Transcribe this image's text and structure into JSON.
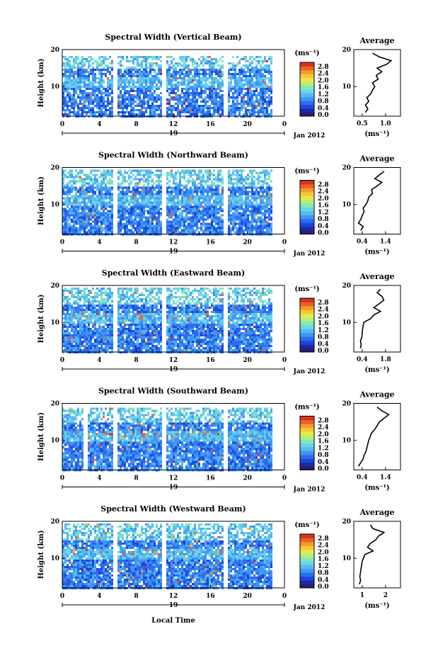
{
  "colors": {
    "scale": [
      "#2b1d6b",
      "#1a2aa8",
      "#1f45d8",
      "#2b6cf0",
      "#3f95f5",
      "#57b9f2",
      "#6bd6e6",
      "#82e8b8",
      "#b5ee7a",
      "#e6e94c",
      "#f7c63a",
      "#f59a2e",
      "#ea6226",
      "#d8321f"
    ],
    "background": "#ffffff",
    "profile_line": "#000000"
  },
  "colorbar": {
    "unit": "(ms⁻¹)",
    "ticks": [
      "2.8",
      "2.4",
      "2.0",
      "1.6",
      "1.2",
      "0.8",
      "0.4",
      "0.0"
    ]
  },
  "date_label": "Jan 2012",
  "day_label": "19",
  "xlabel_bottom": "Local Time",
  "chart_data": [
    {
      "type": "heatmap",
      "title": "Spectral Width (Vertical Beam)",
      "ylabel": "Height (km)",
      "xlim": [
        0,
        24
      ],
      "ylim": [
        2,
        20
      ],
      "xticks": [
        "0",
        "4",
        "8",
        "12",
        "16",
        "20",
        "0"
      ],
      "yticks": [
        "20",
        "10"
      ],
      "data_gaps_hours": [
        5.7,
        10.9,
        17.6
      ],
      "data_end_hour": 22.5,
      "top_height_km": 18.5,
      "profile": {
        "title": "Average",
        "xlabel": "(ms⁻¹)",
        "xlim": [
          0.3,
          1.3
        ],
        "xticks": [
          "0.5",
          "1.0"
        ],
        "heights": [
          3,
          4,
          5,
          6,
          7,
          8,
          9,
          10,
          11,
          12,
          13,
          14,
          15,
          16,
          17,
          18,
          19
        ],
        "values": [
          0.55,
          0.6,
          0.55,
          0.62,
          0.58,
          0.66,
          0.7,
          0.75,
          0.7,
          0.82,
          0.78,
          0.9,
          0.8,
          1.0,
          1.1,
          0.85,
          0.7
        ]
      }
    },
    {
      "type": "heatmap",
      "title": "Spectral Width (Northward Beam)",
      "ylabel": "Height (km)",
      "xlim": [
        0,
        24
      ],
      "ylim": [
        2,
        20
      ],
      "xticks": [
        "0",
        "4",
        "8",
        "12",
        "16",
        "20",
        "0"
      ],
      "yticks": [
        "20",
        "10"
      ],
      "data_gaps_hours": [
        5.7,
        10.9,
        17.6
      ],
      "data_end_hour": 22.5,
      "top_height_km": 19.5,
      "profile": {
        "title": "Average",
        "xlabel": "(ms⁻¹)",
        "xlim": [
          0.4,
          1.4
        ],
        "xticks": [
          "0.4",
          "1.4"
        ],
        "heights": [
          3,
          4,
          5,
          6,
          7,
          8,
          9,
          10,
          11,
          12,
          13,
          14,
          15,
          16,
          17,
          18,
          19
        ],
        "values": [
          0.55,
          0.6,
          0.5,
          0.55,
          0.58,
          0.62,
          0.6,
          0.66,
          0.7,
          0.72,
          0.8,
          0.78,
          0.9,
          1.0,
          0.85,
          0.95,
          1.05
        ]
      }
    },
    {
      "type": "heatmap",
      "title": "Spectral Width (Eastward Beam)",
      "ylabel": "Height (km)",
      "xlim": [
        0,
        24
      ],
      "ylim": [
        2,
        20
      ],
      "xticks": [
        "0",
        "4",
        "8",
        "12",
        "16",
        "20",
        "0"
      ],
      "yticks": [
        "20",
        "10"
      ],
      "data_gaps_hours": [
        5.7,
        10.9,
        17.6
      ],
      "data_end_hour": 22.5,
      "top_height_km": 19.5,
      "profile": {
        "title": "Average",
        "xlabel": "(ms⁻¹)",
        "xlim": [
          0.4,
          1.8
        ],
        "xticks": [
          "0.4",
          "1.8"
        ],
        "heights": [
          3,
          4,
          5,
          6,
          7,
          8,
          9,
          10,
          11,
          12,
          13,
          14,
          15,
          16,
          17,
          18,
          19
        ],
        "values": [
          0.6,
          0.62,
          0.6,
          0.64,
          0.65,
          0.66,
          0.68,
          0.7,
          0.9,
          1.0,
          1.2,
          1.0,
          1.15,
          1.3,
          1.25,
          1.1,
          1.2
        ]
      }
    },
    {
      "type": "heatmap",
      "title": "Spectral Width (Southward Beam)",
      "ylabel": "Height (km)",
      "xlim": [
        0,
        24
      ],
      "ylim": [
        2,
        20
      ],
      "xticks": [
        "0",
        "4",
        "8",
        "12",
        "16",
        "20",
        "0"
      ],
      "yticks": [
        "20",
        "10"
      ],
      "data_gaps_hours": [
        2.4,
        5.7,
        10.9,
        17.6
      ],
      "data_end_hour": 22.5,
      "top_height_km": 19.0,
      "profile": {
        "title": "Average",
        "xlabel": "(ms⁻¹)",
        "xlim": [
          0.4,
          1.4
        ],
        "xticks": [
          "0.4",
          "1.4"
        ],
        "heights": [
          3,
          4,
          5,
          6,
          7,
          8,
          9,
          10,
          11,
          12,
          13,
          14,
          15,
          16,
          17,
          18,
          19
        ],
        "values": [
          0.5,
          0.55,
          0.6,
          0.62,
          0.66,
          0.68,
          0.7,
          0.72,
          0.75,
          0.78,
          0.85,
          0.9,
          0.95,
          1.05,
          1.15,
          1.0,
          0.9
        ]
      }
    },
    {
      "type": "heatmap",
      "title": "Spectral Width (Westward Beam)",
      "ylabel": "Height (km)",
      "xlim": [
        0,
        24
      ],
      "ylim": [
        2,
        20
      ],
      "xticks": [
        "0",
        "4",
        "8",
        "12",
        "16",
        "20",
        "0"
      ],
      "yticks": [
        "20",
        "10"
      ],
      "data_gaps_hours": [
        5.7,
        10.9,
        17.6
      ],
      "data_end_hour": 22.5,
      "top_height_km": 19.5,
      "profile": {
        "title": "Average",
        "xlabel": "(ms⁻¹)",
        "xlim": [
          0.5,
          2.2
        ],
        "xticks": [
          "1",
          "2"
        ],
        "heights": [
          3,
          4,
          5,
          6,
          7,
          8,
          9,
          10,
          11,
          12,
          13,
          14,
          15,
          16,
          17,
          18,
          19
        ],
        "values": [
          0.7,
          0.75,
          0.72,
          0.74,
          0.76,
          0.78,
          0.8,
          0.85,
          0.9,
          1.2,
          1.0,
          1.1,
          1.3,
          1.4,
          1.6,
          1.2,
          1.1
        ]
      }
    }
  ]
}
